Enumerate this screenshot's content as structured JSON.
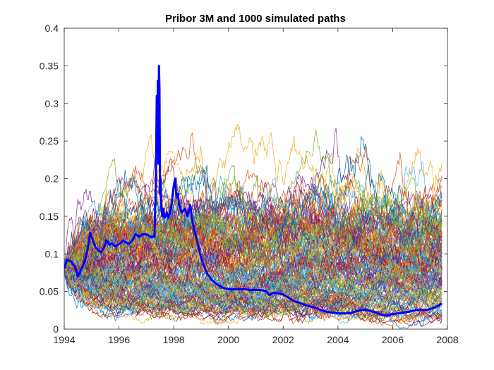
{
  "chart_data": {
    "type": "line",
    "title": "Pribor 3M and 1000 simulated paths",
    "xlabel": "",
    "ylabel": "",
    "xlim": [
      1994,
      2008
    ],
    "ylim": [
      0,
      0.4
    ],
    "x_ticks": [
      1994,
      1996,
      1998,
      2000,
      2002,
      2004,
      2006,
      2008
    ],
    "y_ticks": [
      0,
      0.05,
      0.1,
      0.15,
      0.2,
      0.25,
      0.3,
      0.35,
      0.4
    ],
    "x_tick_labels": [
      "1994",
      "1996",
      "1998",
      "2000",
      "2002",
      "2004",
      "2006",
      "2008"
    ],
    "y_tick_labels": [
      "0",
      "0.05",
      "0.1",
      "0.15",
      "0.2",
      "0.25",
      "0.3",
      "0.35",
      "0.4"
    ],
    "grid": false,
    "legend": "none",
    "simulated_paths": {
      "count": 1000,
      "start_value": 0.08,
      "x_start": 1994,
      "x_end": 2007.8,
      "approx_mean_level": 0.09,
      "approx_range": [
        0,
        0.36
      ],
      "palette": [
        "#0072BD",
        "#D95319",
        "#EDB120",
        "#7E2F8E",
        "#77AC30",
        "#4DBEEE",
        "#A2142F"
      ]
    },
    "series": [
      {
        "color": "#0000FF",
        "x": [
          1994.0,
          1994.1,
          1994.25,
          1994.4,
          1994.5,
          1994.6,
          1994.75,
          1994.85,
          1994.95,
          1995.05,
          1995.15,
          1995.25,
          1995.35,
          1995.45,
          1995.55,
          1995.65,
          1995.75,
          1995.85,
          1995.95,
          1996.05,
          1996.15,
          1996.25,
          1996.35,
          1996.5,
          1996.6,
          1996.75,
          1996.85,
          1997.0,
          1997.1,
          1997.2,
          1997.3,
          1997.35,
          1997.38,
          1997.4,
          1997.42,
          1997.44,
          1997.46,
          1997.48,
          1997.5,
          1997.52,
          1997.55,
          1997.58,
          1997.62,
          1997.66,
          1997.7,
          1997.75,
          1997.8,
          1997.9,
          1998.0,
          1998.05,
          1998.1,
          1998.15,
          1998.2,
          1998.3,
          1998.4,
          1998.5,
          1998.6,
          1998.7,
          1998.8,
          1998.9,
          1999.0,
          1999.1,
          1999.2,
          1999.3,
          1999.4,
          1999.5,
          1999.6,
          1999.7,
          1999.8,
          1999.9,
          2000.0,
          2000.2,
          2000.4,
          2000.6,
          2000.8,
          2001.0,
          2001.2,
          2001.4,
          2001.5,
          2001.6,
          2001.8,
          2002.0,
          2002.2,
          2002.4,
          2002.6,
          2002.8,
          2003.0,
          2003.2,
          2003.4,
          2003.6,
          2003.8,
          2004.0,
          2004.2,
          2004.4,
          2004.6,
          2004.8,
          2005.0,
          2005.2,
          2005.4,
          2005.5,
          2005.6,
          2005.8,
          2006.0,
          2006.2,
          2006.4,
          2006.6,
          2006.8,
          2007.0,
          2007.2,
          2007.4,
          2007.6,
          2007.8
        ],
        "values": [
          0.08,
          0.092,
          0.09,
          0.082,
          0.07,
          0.078,
          0.09,
          0.105,
          0.128,
          0.118,
          0.108,
          0.105,
          0.102,
          0.108,
          0.118,
          0.112,
          0.114,
          0.11,
          0.112,
          0.114,
          0.118,
          0.116,
          0.113,
          0.118,
          0.126,
          0.123,
          0.126,
          0.126,
          0.124,
          0.122,
          0.124,
          0.2,
          0.31,
          0.26,
          0.33,
          0.22,
          0.35,
          0.32,
          0.18,
          0.2,
          0.16,
          0.15,
          0.16,
          0.148,
          0.15,
          0.155,
          0.148,
          0.16,
          0.19,
          0.2,
          0.175,
          0.18,
          0.165,
          0.155,
          0.16,
          0.15,
          0.165,
          0.14,
          0.125,
          0.11,
          0.095,
          0.085,
          0.075,
          0.07,
          0.065,
          0.062,
          0.059,
          0.057,
          0.055,
          0.054,
          0.053,
          0.053,
          0.053,
          0.053,
          0.052,
          0.052,
          0.052,
          0.05,
          0.045,
          0.048,
          0.048,
          0.046,
          0.042,
          0.037,
          0.035,
          0.032,
          0.03,
          0.028,
          0.025,
          0.023,
          0.022,
          0.021,
          0.021,
          0.021,
          0.023,
          0.025,
          0.026,
          0.024,
          0.022,
          0.02,
          0.019,
          0.018,
          0.02,
          0.021,
          0.022,
          0.023,
          0.025,
          0.026,
          0.025,
          0.027,
          0.03,
          0.034
        ]
      }
    ]
  }
}
